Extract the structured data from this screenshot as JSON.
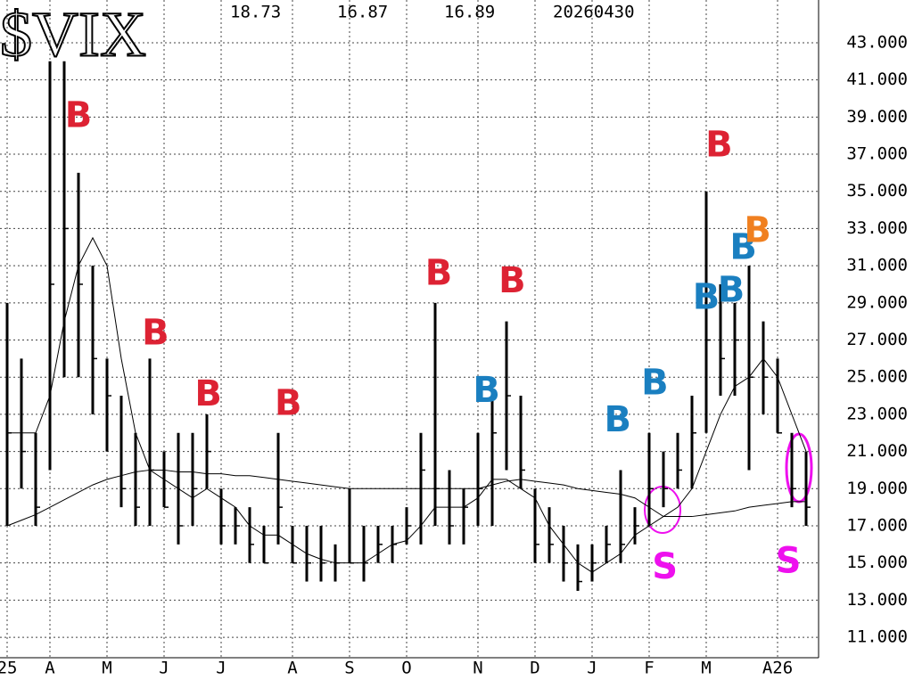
{
  "chart_data": {
    "type": "range-bar",
    "title": "$VIX",
    "header_values": [
      "18.73",
      "16.87",
      "16.89",
      "20260430"
    ],
    "categories": [
      "25",
      null,
      null,
      "A",
      null,
      null,
      null,
      "M",
      null,
      null,
      null,
      "J",
      null,
      null,
      null,
      "J",
      null,
      null,
      null,
      null,
      "A",
      null,
      null,
      null,
      "S",
      null,
      null,
      null,
      "O",
      null,
      null,
      null,
      null,
      "N",
      null,
      null,
      null,
      "D",
      null,
      null,
      null,
      "J",
      null,
      null,
      null,
      "F",
      null,
      null,
      null,
      "M",
      null,
      null,
      null,
      null,
      "A26",
      null,
      null
    ],
    "low": [
      17,
      19,
      17,
      20,
      25,
      25,
      23,
      21,
      18,
      17,
      17,
      18,
      16,
      17,
      19,
      16,
      16,
      15,
      15,
      16,
      15,
      14,
      14,
      14,
      15,
      14,
      15,
      15,
      16,
      16,
      17,
      16,
      16,
      17,
      17,
      20,
      19,
      15,
      15,
      14,
      13.5,
      14,
      15,
      15,
      16,
      17,
      18,
      19,
      19,
      22,
      24,
      24,
      20,
      23,
      22,
      18,
      17
    ],
    "high": [
      29,
      26,
      22,
      42,
      42,
      36,
      31,
      26,
      24,
      22,
      26,
      21,
      22,
      22,
      23,
      19,
      18,
      18,
      17,
      22,
      17,
      17,
      17,
      16,
      19,
      17,
      17,
      17,
      18,
      22,
      29,
      20,
      19,
      22,
      24,
      28,
      24,
      19,
      18,
      17,
      16,
      16,
      17,
      20,
      18,
      22,
      21,
      22,
      24,
      35,
      30,
      29,
      31,
      28,
      26,
      22,
      21
    ],
    "close": [
      22,
      21,
      18,
      30,
      33,
      30,
      26,
      24,
      19,
      18,
      20,
      18,
      17,
      19,
      21,
      17,
      17,
      16,
      15,
      18,
      15,
      15,
      15,
      15,
      15,
      15,
      16,
      16,
      17,
      20,
      19,
      17,
      18,
      19,
      22,
      24,
      20,
      16,
      16,
      15,
      14,
      15,
      16,
      16,
      17,
      19,
      19,
      20,
      22,
      27,
      26,
      27,
      25,
      25,
      22,
      19,
      18
    ],
    "moving_averages": [
      {
        "color": "#000000",
        "values": [
          22,
          22,
          22,
          24,
          28,
          31,
          32.5,
          31,
          26,
          22,
          20,
          19.5,
          19,
          18.5,
          19,
          18.5,
          18,
          17,
          16.5,
          16.5,
          16,
          15.5,
          15.2,
          15,
          15,
          15,
          15.5,
          16,
          16.2,
          17,
          18,
          18,
          18,
          18.5,
          19.5,
          19.5,
          19,
          18.5,
          17,
          16,
          15,
          14.5,
          15,
          15.5,
          16.5,
          17,
          17.5,
          18,
          19,
          21,
          23,
          24.5,
          25,
          26,
          25,
          23,
          21
        ]
      },
      {
        "color": "#000000",
        "values": [
          17,
          17.3,
          17.6,
          18,
          18.4,
          18.8,
          19.2,
          19.5,
          19.7,
          19.9,
          20,
          20,
          19.9,
          19.9,
          19.8,
          19.8,
          19.7,
          19.7,
          19.6,
          19.5,
          19.4,
          19.3,
          19.2,
          19.1,
          19,
          19,
          19,
          19,
          19,
          19,
          19,
          19,
          19,
          19,
          19.2,
          19.4,
          19.5,
          19.4,
          19.3,
          19.2,
          19,
          18.9,
          18.8,
          18.7,
          18.5,
          18,
          17.5,
          17.5,
          17.5,
          17.6,
          17.7,
          17.8,
          18,
          18.1,
          18.2,
          18.3,
          18.3
        ]
      }
    ],
    "annotations": [
      {
        "text": "B",
        "color": "#dd2233",
        "x": 5,
        "y": 39
      },
      {
        "text": "B",
        "color": "#dd2233",
        "x": 10.4,
        "y": 27.3
      },
      {
        "text": "B",
        "color": "#dd2233",
        "x": 14.1,
        "y": 24
      },
      {
        "text": "B",
        "color": "#dd2233",
        "x": 19.7,
        "y": 23.5
      },
      {
        "text": "B",
        "color": "#dd2233",
        "x": 30.25,
        "y": 30.5
      },
      {
        "text": "B",
        "color": "#dd2233",
        "x": 35.4,
        "y": 30.1
      },
      {
        "text": "B",
        "color": "#1a7fc0",
        "x": 33.6,
        "y": 24.2
      },
      {
        "text": "B",
        "color": "#1a7fc0",
        "x": 42.8,
        "y": 22.6
      },
      {
        "text": "B",
        "color": "#1a7fc0",
        "x": 45.4,
        "y": 24.6
      },
      {
        "text": "B",
        "color": "#dd2233",
        "x": 49.9,
        "y": 37.4
      },
      {
        "text": "B",
        "color": "#1a7fc0",
        "x": 49,
        "y": 29.2
      },
      {
        "text": "B",
        "color": "#1a7fc0",
        "x": 50.75,
        "y": 29.6
      },
      {
        "text": "B",
        "color": "#1a7fc0",
        "x": 51.6,
        "y": 31.9
      },
      {
        "text": "B",
        "color": "#f08020",
        "x": 52.6,
        "y": 32.8
      },
      {
        "text": "S",
        "color": "#ee10ee",
        "x": 46.1,
        "y": 14.7
      },
      {
        "text": "S",
        "color": "#ee10ee",
        "x": 54.75,
        "y": 15
      }
    ],
    "ylim": [
      9.9,
      45.3
    ],
    "yticks": [
      {
        "value": 11,
        "label": "11.000"
      },
      {
        "value": 13,
        "label": "13.000"
      },
      {
        "value": 15,
        "label": "15.000"
      },
      {
        "value": 17,
        "label": "17.000"
      },
      {
        "value": 19,
        "label": "19.000"
      },
      {
        "value": 21,
        "label": "21.000"
      },
      {
        "value": 23,
        "label": "23.000"
      },
      {
        "value": 25,
        "label": "25.000"
      },
      {
        "value": 27,
        "label": "27.000"
      },
      {
        "value": 29,
        "label": "29.000"
      },
      {
        "value": 31,
        "label": "31.000"
      },
      {
        "value": 33,
        "label": "33.000"
      },
      {
        "value": 35,
        "label": "35.000"
      },
      {
        "value": 37,
        "label": "37.000"
      },
      {
        "value": 39,
        "label": "39.000"
      },
      {
        "value": 41,
        "label": "41.000"
      },
      {
        "value": 43,
        "label": "43.000"
      }
    ],
    "grid": true,
    "bar_color": "#000000"
  }
}
